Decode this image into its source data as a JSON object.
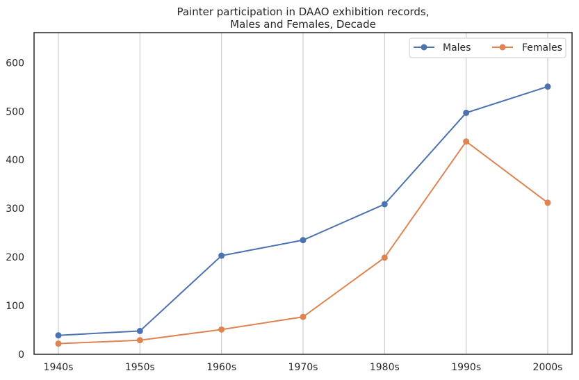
{
  "chart_data": {
    "type": "line",
    "title_lines": [
      "Painter participation in DAAO exhibition records,",
      "Males and Females, Decade"
    ],
    "xlabel": "",
    "ylabel": "",
    "categories": [
      "1940s",
      "1950s",
      "1960s",
      "1970s",
      "1980s",
      "1990s",
      "2000s"
    ],
    "yticks": [
      0,
      100,
      200,
      300,
      400,
      500,
      600
    ],
    "ylim": [
      0,
      662
    ],
    "grid": "vertical",
    "legend_position": "top-right",
    "series": [
      {
        "name": "Males",
        "color": "#4c72b0",
        "values": [
          39,
          48,
          203,
          235,
          309,
          497,
          551
        ]
      },
      {
        "name": "Females",
        "color": "#dd8452",
        "values": [
          22,
          29,
          51,
          77,
          199,
          438,
          312
        ]
      }
    ]
  }
}
